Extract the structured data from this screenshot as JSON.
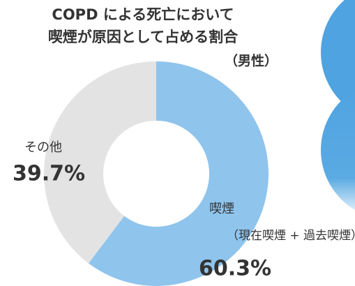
{
  "chart_data": {
    "type": "donut",
    "title": [
      "COPD による死亡において",
      "喫煙が原因として占める割合"
    ],
    "subtitle": "（男性）",
    "categories": [
      "喫煙",
      "その他"
    ],
    "annotations": [
      "（現在喫煙 + 過去喫煙）"
    ],
    "values": [
      60.3,
      39.7
    ],
    "value_labels": [
      "60.3%",
      "39.7%"
    ],
    "colors": [
      "#8fc4ec",
      "#e3e3e3"
    ]
  }
}
